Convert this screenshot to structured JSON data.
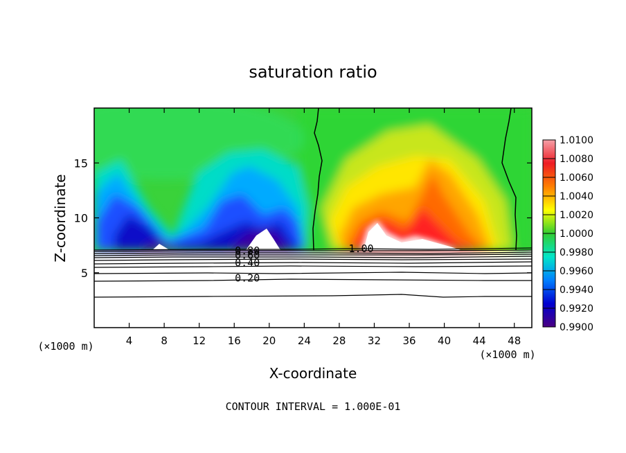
{
  "chart_data": {
    "type": "heatmap",
    "title": "saturation ratio",
    "xlabel": "X-coordinate",
    "ylabel": "Z-coordinate",
    "x_unit": "(×1000 m)",
    "z_unit": "(×1000 m)",
    "xlim": [
      0,
      50
    ],
    "ylim": [
      0,
      20
    ],
    "x_ticks": [
      4,
      8,
      12,
      16,
      20,
      24,
      28,
      32,
      36,
      40,
      44,
      48
    ],
    "y_ticks": [
      5,
      10,
      15
    ],
    "colorbar": {
      "ticks": [
        "1.0100",
        "1.0080",
        "1.0060",
        "1.0040",
        "1.0020",
        "1.0000",
        "0.9980",
        "0.9960",
        "0.9940",
        "0.9920",
        "0.9900"
      ],
      "range": [
        0.99,
        1.01
      ],
      "colors": [
        "#f5a0a8",
        "#ee1c24",
        "#ff7f00",
        "#ffff00",
        "#32cd32",
        "#00e5c8",
        "#0080ff",
        "#0000d0",
        "#4b0082"
      ]
    },
    "contour_labels": [
      {
        "text": "0.80",
        "x": 17.5,
        "z": 7.0
      },
      {
        "text": "0.60",
        "x": 17.5,
        "z": 6.6
      },
      {
        "text": "0.40",
        "x": 17.5,
        "z": 5.9
      },
      {
        "text": "0.20",
        "x": 17.5,
        "z": 4.5
      },
      {
        "text": "1.00",
        "x": 30.5,
        "z": 7.2
      }
    ],
    "contour_interval_label": "CONTOUR INTERVAL = 1.000E-01"
  }
}
